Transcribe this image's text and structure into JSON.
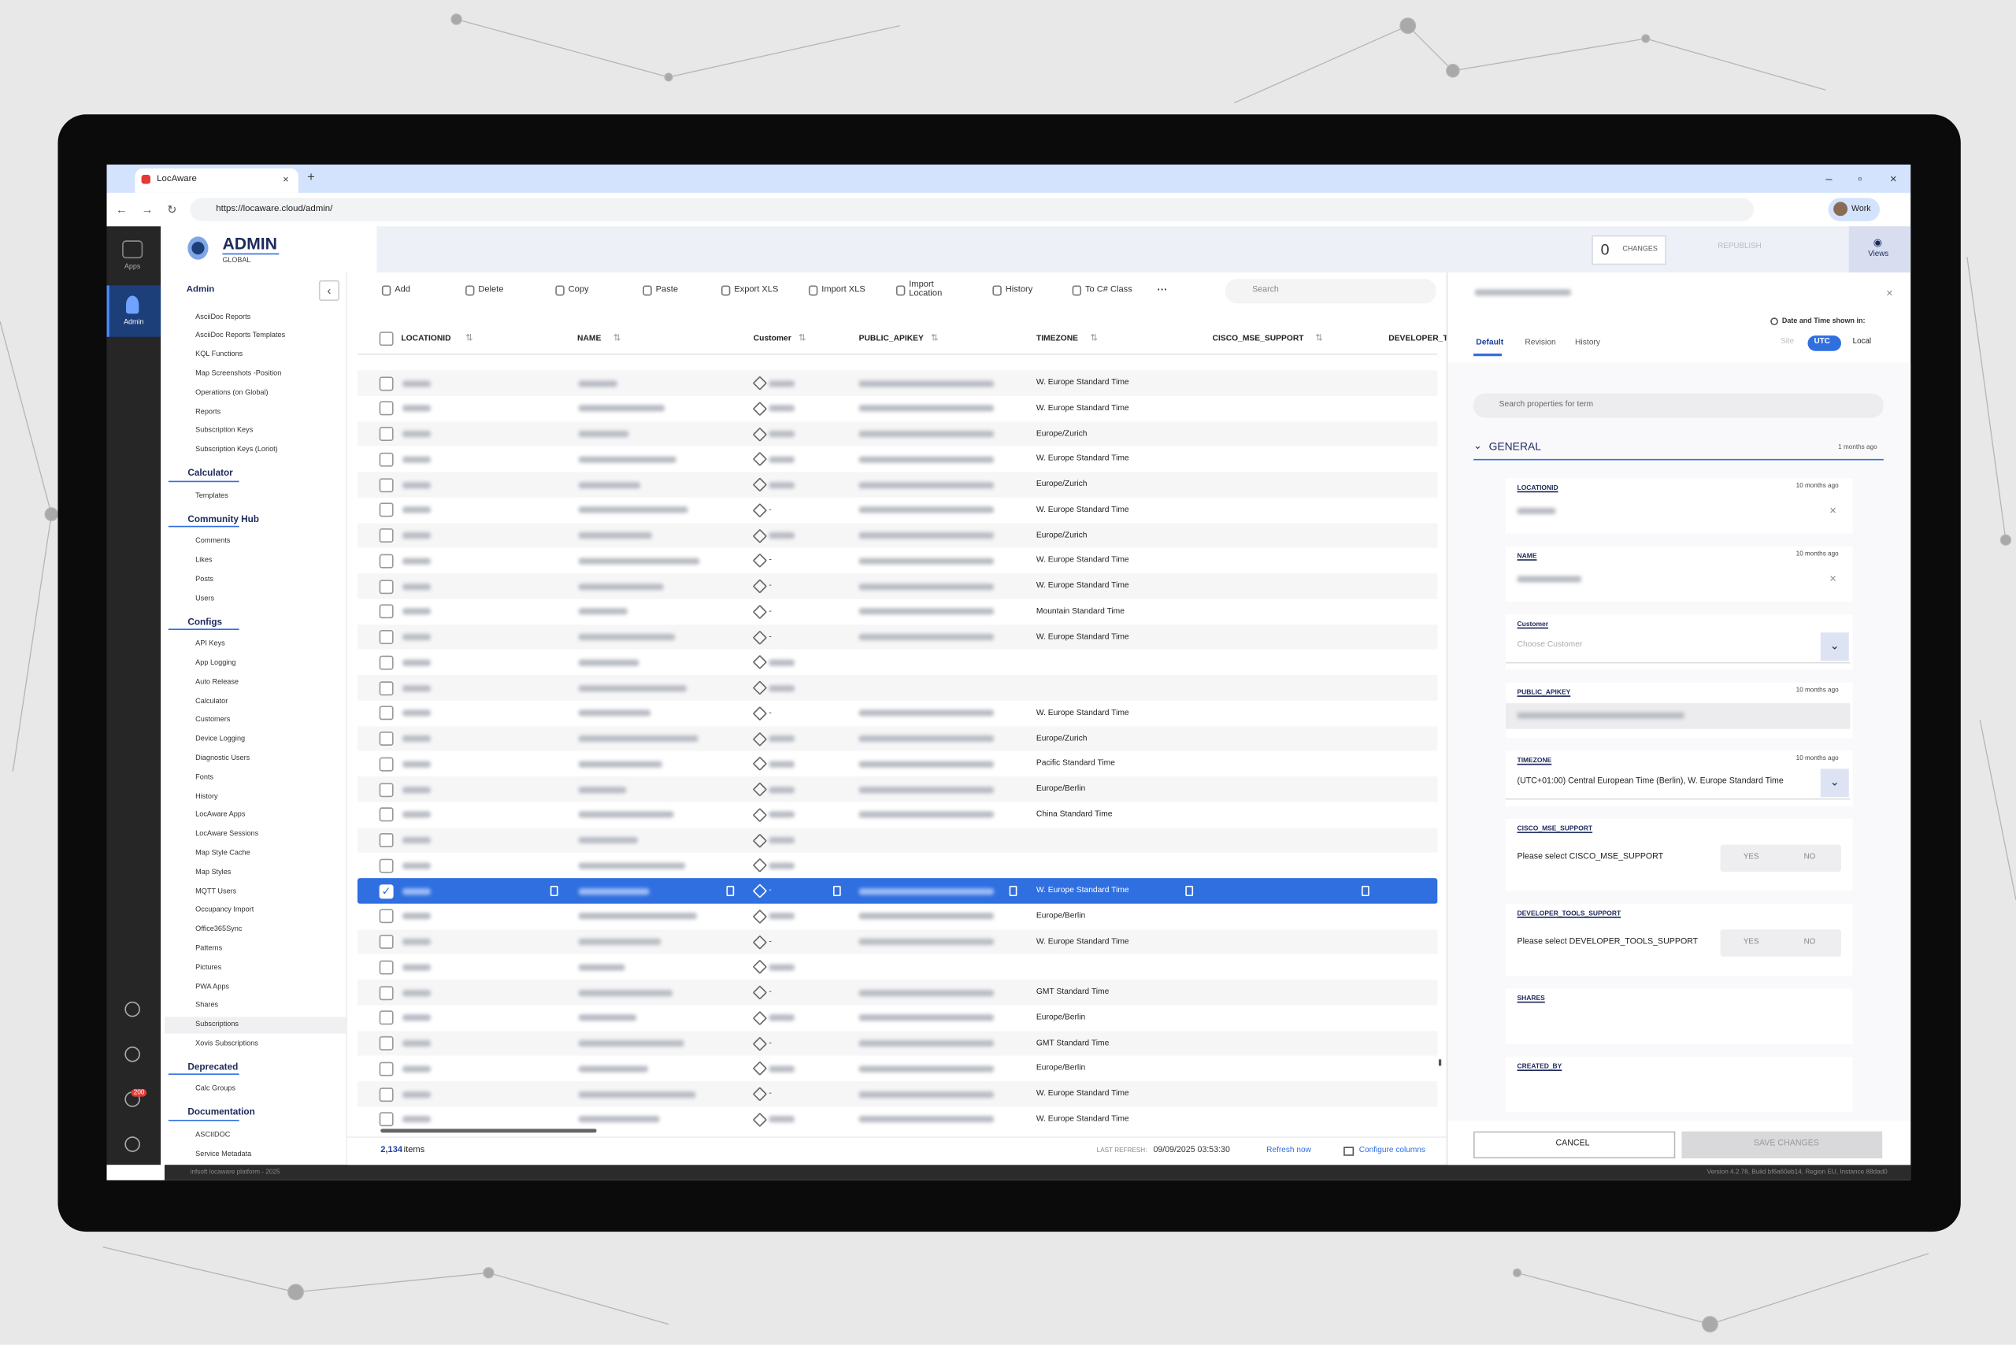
{
  "browser": {
    "tab_title": "LocAware",
    "url": "https://locaware.cloud/admin/",
    "profile": "Work"
  },
  "rail": {
    "items": [
      "Apps",
      "Admin"
    ],
    "badge": "200"
  },
  "header": {
    "title": "ADMIN",
    "subtitle": "GLOBAL",
    "changes_count": "0",
    "changes_label": "CHANGES",
    "republish": "REPUBLISH",
    "views": "Views"
  },
  "sidebar": {
    "title": "Admin",
    "sections": [
      {
        "items": [
          "AsciiDoc Reports",
          "AsciiDoc Reports Templates",
          "KQL Functions",
          "Map Screenshots -Position",
          "Operations (on Global)",
          "Reports",
          "Subscription Keys",
          "Subscription Keys (Loriot)"
        ]
      },
      {
        "title": "Calculator",
        "items": [
          "Templates"
        ]
      },
      {
        "title": "Community Hub",
        "items": [
          "Comments",
          "Likes",
          "Posts",
          "Users"
        ]
      },
      {
        "title": "Configs",
        "items": [
          "API Keys",
          "App Logging",
          "Auto Release",
          "Calculator",
          "Customers",
          "Device Logging",
          "Diagnostic Users",
          "Fonts",
          "History",
          "LocAware Apps",
          "LocAware Sessions",
          "Map Style Cache",
          "Map Styles",
          "MQTT Users",
          "Occupancy Import",
          "Office365Sync",
          "Patterns",
          "Pictures",
          "PWA Apps",
          "Shares",
          {
            "label": "Subscriptions",
            "active": true
          },
          "Xovis Subscriptions"
        ]
      },
      {
        "title": "Deprecated",
        "items": [
          "Calc Groups"
        ]
      },
      {
        "title": "Documentation",
        "items": [
          "ASCIIDOC",
          "Service Metadata"
        ]
      }
    ]
  },
  "toolbar": {
    "buttons": [
      "Add",
      "Delete",
      "Copy",
      "Paste",
      "Export XLS",
      "Import XLS",
      "Import Location",
      "History",
      "To C# Class"
    ],
    "more": "···",
    "search_placeholder": "Search"
  },
  "table": {
    "columns": [
      "LOCATIONID",
      "NAME",
      "Customer",
      "PUBLIC_APIKEY",
      "TIMEZONE",
      "CISCO_MSE_SUPPORT",
      "DEVELOPER_T"
    ],
    "rows": [
      {
        "timezone": "W. Europe Standard Time"
      },
      {
        "timezone": "W. Europe Standard Time"
      },
      {
        "timezone": "Europe/Zurich"
      },
      {
        "timezone": "W. Europe Standard Time"
      },
      {
        "timezone": "Europe/Zurich"
      },
      {
        "customer": "-",
        "timezone": "W. Europe Standard Time"
      },
      {
        "timezone": "Europe/Zurich"
      },
      {
        "customer": "-",
        "timezone": "W. Europe Standard Time"
      },
      {
        "customer": "-",
        "timezone": "W. Europe Standard Time"
      },
      {
        "customer": "-",
        "timezone": "Mountain Standard Time"
      },
      {
        "customer": "-",
        "timezone": "W. Europe Standard Time"
      },
      {},
      {},
      {
        "customer": "-",
        "timezone": "W. Europe Standard Time"
      },
      {
        "timezone": "Europe/Zurich"
      },
      {
        "timezone": "Pacific Standard Time"
      },
      {
        "timezone": "Europe/Berlin"
      },
      {
        "timezone": "China Standard Time"
      },
      {},
      {},
      {
        "customer": "-",
        "timezone": "W. Europe Standard Time",
        "selected": true
      },
      {
        "timezone": "Europe/Berlin"
      },
      {
        "customer": "-",
        "timezone": "W. Europe Standard Time"
      },
      {},
      {
        "customer": "-",
        "timezone": "GMT Standard Time"
      },
      {
        "timezone": "Europe/Berlin"
      },
      {
        "customer": "-",
        "timezone": "GMT Standard Time"
      },
      {
        "timezone": "Europe/Berlin"
      },
      {
        "customer": "-",
        "timezone": "W. Europe Standard Time"
      },
      {
        "timezone": "W. Europe Standard Time"
      }
    ]
  },
  "footer": {
    "count": "2,134",
    "count_label": "items",
    "last_refresh_label": "LAST REFRESH:",
    "last_refresh": "09/09/2025 03:53:30",
    "refresh": "Refresh now",
    "configure": "Configure columns"
  },
  "status": {
    "left": "infsoft locaware platform - 2025",
    "right": "Version 4.2.78, Build bf6a60eb14, Region EU, Instance 88dad0"
  },
  "panel": {
    "tabs": [
      "Default",
      "Revision",
      "History"
    ],
    "time_label": "Date and Time shown in:",
    "time_modes": [
      "Site",
      "UTC",
      "Local"
    ],
    "search_placeholder": "Search properties for term",
    "section": "GENERAL",
    "section_age": "1 months ago",
    "fields": [
      {
        "label": "LOCATIONID",
        "age": "10 months ago",
        "kind": "text"
      },
      {
        "label": "NAME",
        "age": "10 months ago",
        "kind": "text"
      },
      {
        "label": "Customer",
        "kind": "select",
        "placeholder": "Choose Customer"
      },
      {
        "label": "PUBLIC_APIKEY",
        "age": "10 months ago",
        "kind": "disabled"
      },
      {
        "label": "TIMEZONE",
        "age": "10 months ago",
        "kind": "select",
        "value": "(UTC+01:00) Central European Time (Berlin), W. Europe Standard Time"
      },
      {
        "label": "CISCO_MSE_SUPPORT",
        "kind": "yesno",
        "prompt": "Please select CISCO_MSE_SUPPORT",
        "options": [
          "YES",
          "NO"
        ]
      },
      {
        "label": "DEVELOPER_TOOLS_SUPPORT",
        "kind": "yesno",
        "prompt": "Please select DEVELOPER_TOOLS_SUPPORT",
        "options": [
          "YES",
          "NO"
        ]
      },
      {
        "label": "SHARES",
        "kind": "empty"
      },
      {
        "label": "CREATED_BY",
        "kind": "empty"
      }
    ],
    "cancel": "CANCEL",
    "save": "SAVE CHANGES"
  }
}
